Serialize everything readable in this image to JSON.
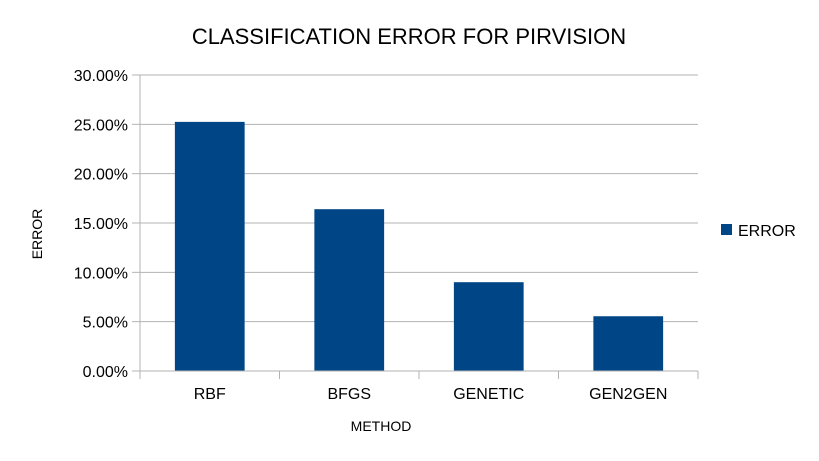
{
  "chart_data": {
    "type": "bar",
    "title": "CLASSIFICATION ERROR FOR PIRVISION",
    "xlabel": "METHOD",
    "ylabel": "ERROR",
    "categories": [
      "RBF",
      "BFGS",
      "GENETIC",
      "GEN2GEN"
    ],
    "series": [
      {
        "name": "ERROR",
        "values": [
          0.2525,
          0.164,
          0.09,
          0.0555
        ],
        "color": "#004586"
      }
    ],
    "ylim": [
      0,
      0.3
    ],
    "yticks": [
      0,
      0.05,
      0.1,
      0.15,
      0.2,
      0.25,
      0.3
    ],
    "ytick_labels": [
      "0.00%",
      "5.00%",
      "10.00%",
      "15.00%",
      "20.00%",
      "25.00%",
      "30.00%"
    ],
    "grid": true,
    "legend_position": "right"
  }
}
